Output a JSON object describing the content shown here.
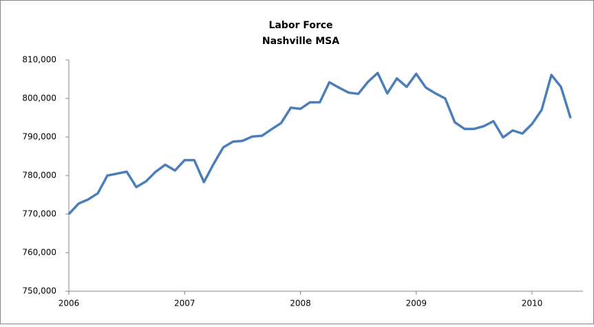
{
  "chart_data": {
    "type": "line",
    "title": "Labor Force",
    "subtitle": "Nashville MSA",
    "x": [
      2006,
      2006.083,
      2006.167,
      2006.25,
      2006.333,
      2006.417,
      2006.5,
      2006.583,
      2006.667,
      2006.75,
      2006.833,
      2006.917,
      2007,
      2007.083,
      2007.167,
      2007.25,
      2007.333,
      2007.417,
      2007.5,
      2007.583,
      2007.667,
      2007.75,
      2007.833,
      2007.917,
      2008,
      2008.083,
      2008.167,
      2008.25,
      2008.333,
      2008.417,
      2008.5,
      2008.583,
      2008.667,
      2008.75,
      2008.833,
      2008.917,
      2009,
      2009.083,
      2009.167,
      2009.25,
      2009.333,
      2009.417,
      2009.5,
      2009.583,
      2009.667,
      2009.75,
      2009.833,
      2009.917,
      2010,
      2010.083,
      2010.167,
      2010.25,
      2010.333
    ],
    "series": [
      {
        "name": "Labor Force",
        "color": "#4a7ebb",
        "values": [
          770000,
          772700,
          773800,
          775400,
          780000,
          780500,
          781000,
          777000,
          778500,
          781000,
          782800,
          781300,
          784000,
          784000,
          778300,
          783000,
          787300,
          788800,
          789000,
          790100,
          790300,
          792000,
          793600,
          797600,
          797300,
          799000,
          799000,
          804200,
          802800,
          801500,
          801200,
          804300,
          806600,
          801300,
          805200,
          803000,
          806400,
          802800,
          801300,
          800000,
          793800,
          792100,
          792100,
          792800,
          794100,
          789900,
          791700,
          790900,
          793400,
          797000,
          806100,
          803000,
          794900
        ]
      }
    ],
    "xlim": [
      2006,
      2010.44
    ],
    "xticks": [
      2006,
      2007,
      2008,
      2009,
      2010
    ],
    "ylim": [
      750000,
      810000
    ],
    "yticks": [
      {
        "value": 750000,
        "label": "750,000"
      },
      {
        "value": 760000,
        "label": "760,000"
      },
      {
        "value": 770000,
        "label": "770,000"
      },
      {
        "value": 780000,
        "label": "780,000"
      },
      {
        "value": 790000,
        "label": "790,000"
      },
      {
        "value": 800000,
        "label": "800,000"
      },
      {
        "value": 810000,
        "label": "810,000"
      }
    ],
    "grid": false
  }
}
